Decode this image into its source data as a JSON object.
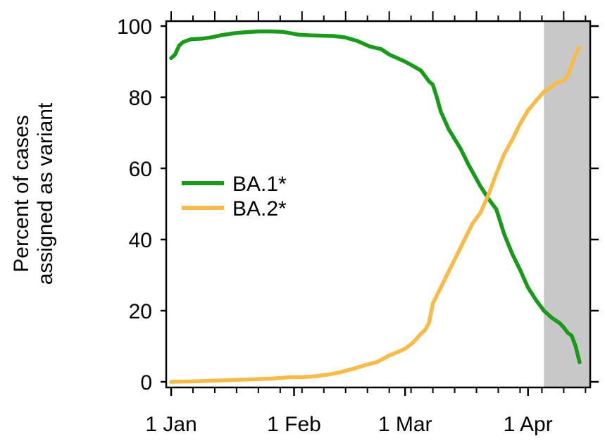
{
  "chart_data": {
    "type": "line",
    "ylabel_lines": [
      "Percent of cases",
      "assigned as variant"
    ],
    "ylim": [
      0,
      100
    ],
    "xlim": [
      0,
      103
    ],
    "y_ticks": [
      0,
      20,
      40,
      60,
      80,
      100
    ],
    "x_ticks": [
      {
        "label": "1 Jan",
        "day": 0
      },
      {
        "label": "1 Feb",
        "day": 31
      },
      {
        "label": "1 Mar",
        "day": 59
      },
      {
        "label": "1 Apr",
        "day": 90
      }
    ],
    "minor_tick_step_days": 5.5,
    "shaded_region": {
      "from_day": 94,
      "to_day": 103,
      "color": "#c8c8c8"
    },
    "legend_position": "center-left",
    "series": [
      {
        "name": "BA.1*",
        "color": "#1a9a1a",
        "points": [
          [
            0,
            91
          ],
          [
            1,
            92
          ],
          [
            2,
            94.5
          ],
          [
            3,
            95.5
          ],
          [
            5,
            96.3
          ],
          [
            8,
            96.5
          ],
          [
            10,
            96.8
          ],
          [
            13,
            97.5
          ],
          [
            16,
            98
          ],
          [
            19,
            98.3
          ],
          [
            22,
            98.5
          ],
          [
            25,
            98.5
          ],
          [
            28,
            98.4
          ],
          [
            30,
            98
          ],
          [
            32,
            97.6
          ],
          [
            35,
            97.4
          ],
          [
            38,
            97.3
          ],
          [
            41,
            97.2
          ],
          [
            44,
            96.8
          ],
          [
            47,
            95.8
          ],
          [
            50,
            94.3
          ],
          [
            53,
            93.5
          ],
          [
            55,
            92
          ],
          [
            57,
            91
          ],
          [
            59,
            90
          ],
          [
            61,
            88.8
          ],
          [
            63,
            87.5
          ],
          [
            65,
            84.5
          ],
          [
            66,
            83.5
          ],
          [
            67,
            80
          ],
          [
            68,
            76
          ],
          [
            70,
            71
          ],
          [
            73,
            65.5
          ],
          [
            75,
            61
          ],
          [
            77,
            57
          ],
          [
            78,
            55
          ],
          [
            80,
            51.5
          ],
          [
            82,
            48.5
          ],
          [
            84,
            41.5
          ],
          [
            86,
            36
          ],
          [
            88,
            31.5
          ],
          [
            90,
            26.5
          ],
          [
            92,
            23
          ],
          [
            94,
            20
          ],
          [
            96,
            18
          ],
          [
            98,
            16.5
          ],
          [
            99,
            15.3
          ],
          [
            100,
            13.8
          ],
          [
            101,
            13
          ],
          [
            102,
            10
          ],
          [
            103,
            5.5
          ]
        ]
      },
      {
        "name": "BA.2*",
        "color": "#f7bb4a",
        "points": [
          [
            0,
            0
          ],
          [
            5,
            0.1
          ],
          [
            10,
            0.3
          ],
          [
            15,
            0.5
          ],
          [
            20,
            0.7
          ],
          [
            25,
            0.9
          ],
          [
            28,
            1.1
          ],
          [
            30,
            1.3
          ],
          [
            33,
            1.3
          ],
          [
            36,
            1.5
          ],
          [
            40,
            2.1
          ],
          [
            43,
            2.8
          ],
          [
            46,
            3.7
          ],
          [
            49,
            4.7
          ],
          [
            52,
            5.6
          ],
          [
            55,
            7.4
          ],
          [
            57,
            8.3
          ],
          [
            59,
            9.3
          ],
          [
            61,
            11
          ],
          [
            63,
            13.5
          ],
          [
            64,
            14.5
          ],
          [
            65,
            16.5
          ],
          [
            66,
            22
          ],
          [
            68,
            26.5
          ],
          [
            70,
            31
          ],
          [
            72,
            35.5
          ],
          [
            74,
            40
          ],
          [
            76,
            44.5
          ],
          [
            78,
            47.5
          ],
          [
            80,
            52.5
          ],
          [
            82,
            58.5
          ],
          [
            84,
            64
          ],
          [
            86,
            68
          ],
          [
            88,
            72.5
          ],
          [
            90,
            76.3
          ],
          [
            92,
            79
          ],
          [
            94,
            81.5
          ],
          [
            96,
            83
          ],
          [
            97,
            84
          ],
          [
            99,
            84.7
          ],
          [
            100,
            86
          ],
          [
            101,
            89
          ],
          [
            102,
            92
          ],
          [
            103,
            94
          ]
        ]
      }
    ]
  }
}
